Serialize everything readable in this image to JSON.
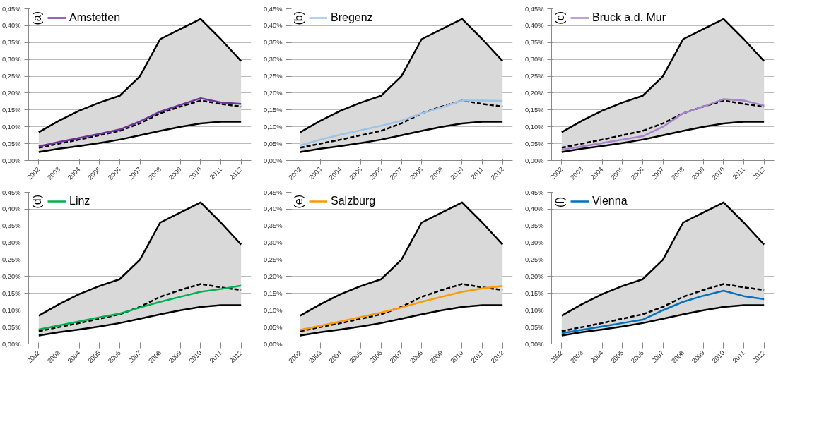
{
  "chart_data": [
    {
      "type": "line",
      "title": "(a)",
      "categories": [
        "2002",
        "2003",
        "2004",
        "2005",
        "2006",
        "2007",
        "2008",
        "2009",
        "2010",
        "2011",
        "2012"
      ],
      "ylim": [
        0,
        0.45
      ],
      "yticks": [
        {
          "value": 0,
          "label": "0,00%"
        },
        {
          "value": 0.05,
          "label": "0,05%"
        },
        {
          "value": 0.1,
          "label": "0,10%"
        },
        {
          "value": 0.15,
          "label": "0,15%"
        },
        {
          "value": 0.2,
          "label": "0,20%"
        },
        {
          "value": 0.25,
          "label": "0,25%"
        },
        {
          "value": 0.3,
          "label": "0,30%"
        },
        {
          "value": 0.35,
          "label": "0,35%"
        },
        {
          "value": 0.4,
          "label": "0,40%"
        },
        {
          "value": 0.45,
          "label": "0,45%"
        }
      ],
      "grid": "y",
      "legend": "top left",
      "series": [
        {
          "color": "#000000",
          "values": [
            0.084,
            0.118,
            0.148,
            0.172,
            0.192,
            0.25,
            0.36,
            0.39,
            0.42,
            0.36,
            0.295
          ]
        },
        {
          "color": "#000000",
          "values": [
            0.025,
            0.035,
            0.043,
            0.052,
            0.062,
            0.075,
            0.088,
            0.1,
            0.11,
            0.115,
            0.115
          ]
        },
        {
          "color": "#000000",
          "line_style": "dashed",
          "values": [
            0.038,
            0.05,
            0.062,
            0.075,
            0.088,
            0.11,
            0.14,
            0.16,
            0.178,
            0.168,
            0.16
          ],
          "lower": [
            0.025,
            0.035,
            0.043,
            0.052,
            0.062,
            0.075,
            0.088,
            0.1,
            0.11,
            0.115,
            0.115
          ],
          "upper": [
            0.084,
            0.118,
            0.148,
            0.172,
            0.192,
            0.25,
            0.36,
            0.39,
            0.42,
            0.36,
            0.295
          ]
        },
        {
          "name": "Amstetten",
          "color": "#7030a0",
          "values": [
            0.042,
            0.055,
            0.067,
            0.079,
            0.092,
            0.116,
            0.145,
            0.165,
            0.185,
            0.172,
            0.168
          ]
        }
      ]
    },
    {
      "type": "line",
      "title": "(b)",
      "categories": [
        "2002",
        "2003",
        "2004",
        "2005",
        "2006",
        "2007",
        "2008",
        "2009",
        "2010",
        "2011",
        "2012"
      ],
      "ylim": [
        0,
        0.45
      ],
      "yticks": [
        {
          "value": 0,
          "label": "0,00%"
        },
        {
          "value": 0.05,
          "label": "0,05%"
        },
        {
          "value": 0.1,
          "label": "0,10%"
        },
        {
          "value": 0.15,
          "label": "0,15%"
        },
        {
          "value": 0.2,
          "label": "0,20%"
        },
        {
          "value": 0.25,
          "label": "0,25%"
        },
        {
          "value": 0.3,
          "label": "0,30%"
        },
        {
          "value": 0.35,
          "label": "0,35%"
        },
        {
          "value": 0.4,
          "label": "0,40%"
        },
        {
          "value": 0.45,
          "label": "0,45%"
        }
      ],
      "grid": "y",
      "legend": "top left",
      "series": [
        {
          "color": "#000000",
          "values": [
            0.084,
            0.118,
            0.148,
            0.172,
            0.192,
            0.25,
            0.36,
            0.39,
            0.42,
            0.36,
            0.295
          ]
        },
        {
          "color": "#000000",
          "values": [
            0.025,
            0.035,
            0.043,
            0.052,
            0.062,
            0.075,
            0.088,
            0.1,
            0.11,
            0.115,
            0.115
          ]
        },
        {
          "color": "#000000",
          "line_style": "dashed",
          "values": [
            0.038,
            0.05,
            0.062,
            0.075,
            0.088,
            0.11,
            0.14,
            0.16,
            0.178,
            0.168,
            0.16
          ],
          "lower": [
            0.025,
            0.035,
            0.043,
            0.052,
            0.062,
            0.075,
            0.088,
            0.1,
            0.11,
            0.115,
            0.115
          ],
          "upper": [
            0.084,
            0.118,
            0.148,
            0.172,
            0.192,
            0.25,
            0.36,
            0.39,
            0.42,
            0.36,
            0.295
          ]
        },
        {
          "name": "Bregenz",
          "color": "#9dc3e6",
          "values": [
            0.045,
            0.062,
            0.077,
            0.09,
            0.103,
            0.118,
            0.14,
            0.158,
            0.178,
            0.178,
            0.177
          ]
        }
      ]
    },
    {
      "type": "line",
      "title": "(c)",
      "categories": [
        "2002",
        "2003",
        "2004",
        "2005",
        "2006",
        "2007",
        "2008",
        "2009",
        "2010",
        "2011",
        "2012"
      ],
      "ylim": [
        0,
        0.45
      ],
      "yticks": [
        {
          "value": 0,
          "label": "0,00%"
        },
        {
          "value": 0.05,
          "label": "0,05%"
        },
        {
          "value": 0.1,
          "label": "0,10%"
        },
        {
          "value": 0.15,
          "label": "0,15%"
        },
        {
          "value": 0.2,
          "label": "0,20%"
        },
        {
          "value": 0.25,
          "label": "0,25%"
        },
        {
          "value": 0.3,
          "label": "0,30%"
        },
        {
          "value": 0.35,
          "label": "0,35%"
        },
        {
          "value": 0.4,
          "label": "0,40%"
        },
        {
          "value": 0.45,
          "label": "0,45%"
        }
      ],
      "grid": "y",
      "legend": "top left",
      "series": [
        {
          "color": "#000000",
          "values": [
            0.084,
            0.118,
            0.148,
            0.172,
            0.192,
            0.25,
            0.36,
            0.39,
            0.42,
            0.36,
            0.295
          ]
        },
        {
          "color": "#000000",
          "values": [
            0.025,
            0.035,
            0.043,
            0.052,
            0.062,
            0.075,
            0.088,
            0.1,
            0.11,
            0.115,
            0.115
          ]
        },
        {
          "color": "#000000",
          "line_style": "dashed",
          "values": [
            0.038,
            0.05,
            0.062,
            0.075,
            0.088,
            0.11,
            0.14,
            0.16,
            0.178,
            0.168,
            0.16
          ],
          "lower": [
            0.025,
            0.035,
            0.043,
            0.052,
            0.062,
            0.075,
            0.088,
            0.1,
            0.11,
            0.115,
            0.115
          ],
          "upper": [
            0.084,
            0.118,
            0.148,
            0.172,
            0.192,
            0.25,
            0.36,
            0.39,
            0.42,
            0.36,
            0.295
          ]
        },
        {
          "name": "Bruck a.d. Mur",
          "color": "#a683cc",
          "values": [
            0.032,
            0.042,
            0.052,
            0.062,
            0.072,
            0.1,
            0.14,
            0.16,
            0.182,
            0.178,
            0.163
          ]
        }
      ]
    },
    {
      "type": "line",
      "title": "(d)",
      "categories": [
        "2002",
        "2003",
        "2004",
        "2005",
        "2006",
        "2007",
        "2008",
        "2009",
        "2010",
        "2011",
        "2012"
      ],
      "ylim": [
        0,
        0.45
      ],
      "yticks": [
        {
          "value": 0,
          "label": "0,00%"
        },
        {
          "value": 0.05,
          "label": "0,05%"
        },
        {
          "value": 0.1,
          "label": "0,10%"
        },
        {
          "value": 0.15,
          "label": "0,15%"
        },
        {
          "value": 0.2,
          "label": "0,20%"
        },
        {
          "value": 0.25,
          "label": "0,25%"
        },
        {
          "value": 0.3,
          "label": "0,30%"
        },
        {
          "value": 0.35,
          "label": "0,35%"
        },
        {
          "value": 0.4,
          "label": "0,40%"
        },
        {
          "value": 0.45,
          "label": "0,45%"
        }
      ],
      "grid": "y",
      "legend": "top left",
      "series": [
        {
          "color": "#000000",
          "values": [
            0.084,
            0.118,
            0.148,
            0.172,
            0.192,
            0.25,
            0.36,
            0.39,
            0.42,
            0.36,
            0.295
          ]
        },
        {
          "color": "#000000",
          "values": [
            0.025,
            0.035,
            0.043,
            0.052,
            0.062,
            0.075,
            0.088,
            0.1,
            0.11,
            0.115,
            0.115
          ]
        },
        {
          "color": "#000000",
          "line_style": "dashed",
          "values": [
            0.038,
            0.05,
            0.062,
            0.075,
            0.088,
            0.11,
            0.14,
            0.16,
            0.178,
            0.168,
            0.16
          ],
          "lower": [
            0.025,
            0.035,
            0.043,
            0.052,
            0.062,
            0.075,
            0.088,
            0.1,
            0.11,
            0.115,
            0.115
          ],
          "upper": [
            0.084,
            0.118,
            0.148,
            0.172,
            0.192,
            0.25,
            0.36,
            0.39,
            0.42,
            0.36,
            0.295
          ]
        },
        {
          "name": "Linz",
          "color": "#00b050",
          "values": [
            0.043,
            0.055,
            0.067,
            0.079,
            0.09,
            0.108,
            0.125,
            0.14,
            0.155,
            0.163,
            0.173
          ]
        }
      ]
    },
    {
      "type": "line",
      "title": "(e)",
      "categories": [
        "2002",
        "2003",
        "2004",
        "2005",
        "2006",
        "2007",
        "2008",
        "2009",
        "2010",
        "2011",
        "2012"
      ],
      "ylim": [
        0,
        0.45
      ],
      "yticks": [
        {
          "value": 0,
          "label": "0,00%"
        },
        {
          "value": 0.05,
          "label": "0,05%"
        },
        {
          "value": 0.1,
          "label": "0,10%"
        },
        {
          "value": 0.15,
          "label": "0,15%"
        },
        {
          "value": 0.2,
          "label": "0,20%"
        },
        {
          "value": 0.25,
          "label": "0,25%"
        },
        {
          "value": 0.3,
          "label": "0,30%"
        },
        {
          "value": 0.35,
          "label": "0,35%"
        },
        {
          "value": 0.4,
          "label": "0,40%"
        },
        {
          "value": 0.45,
          "label": "0,45%"
        }
      ],
      "grid": "y",
      "legend": "top left",
      "series": [
        {
          "color": "#000000",
          "values": [
            0.084,
            0.118,
            0.148,
            0.172,
            0.192,
            0.25,
            0.36,
            0.39,
            0.42,
            0.36,
            0.295
          ]
        },
        {
          "color": "#000000",
          "values": [
            0.025,
            0.035,
            0.043,
            0.052,
            0.062,
            0.075,
            0.088,
            0.1,
            0.11,
            0.115,
            0.115
          ]
        },
        {
          "color": "#000000",
          "line_style": "dashed",
          "values": [
            0.038,
            0.05,
            0.062,
            0.075,
            0.088,
            0.11,
            0.14,
            0.16,
            0.178,
            0.168,
            0.16
          ],
          "lower": [
            0.025,
            0.035,
            0.043,
            0.052,
            0.062,
            0.075,
            0.088,
            0.1,
            0.11,
            0.115,
            0.115
          ],
          "upper": [
            0.084,
            0.118,
            0.148,
            0.172,
            0.192,
            0.25,
            0.36,
            0.39,
            0.42,
            0.36,
            0.295
          ]
        },
        {
          "name": "Salzburg",
          "color": "#ff9900",
          "values": [
            0.042,
            0.054,
            0.067,
            0.08,
            0.093,
            0.108,
            0.125,
            0.14,
            0.155,
            0.165,
            0.172
          ]
        }
      ]
    },
    {
      "type": "line",
      "title": "(f)",
      "categories": [
        "2002",
        "2003",
        "2004",
        "2005",
        "2006",
        "2007",
        "2008",
        "2009",
        "2010",
        "2011",
        "2012"
      ],
      "ylim": [
        0,
        0.45
      ],
      "yticks": [
        {
          "value": 0,
          "label": "0,00%"
        },
        {
          "value": 0.05,
          "label": "0,05%"
        },
        {
          "value": 0.1,
          "label": "0,10%"
        },
        {
          "value": 0.15,
          "label": "0,15%"
        },
        {
          "value": 0.2,
          "label": "0,20%"
        },
        {
          "value": 0.25,
          "label": "0,25%"
        },
        {
          "value": 0.3,
          "label": "0,30%"
        },
        {
          "value": 0.35,
          "label": "0,35%"
        },
        {
          "value": 0.4,
          "label": "0,40%"
        },
        {
          "value": 0.45,
          "label": "0,45%"
        }
      ],
      "grid": "y",
      "legend": "top left",
      "series": [
        {
          "color": "#000000",
          "values": [
            0.084,
            0.118,
            0.148,
            0.172,
            0.192,
            0.25,
            0.36,
            0.39,
            0.42,
            0.36,
            0.295
          ]
        },
        {
          "color": "#000000",
          "values": [
            0.025,
            0.035,
            0.043,
            0.052,
            0.062,
            0.075,
            0.088,
            0.1,
            0.11,
            0.115,
            0.115
          ]
        },
        {
          "color": "#000000",
          "line_style": "dashed",
          "values": [
            0.038,
            0.05,
            0.062,
            0.075,
            0.088,
            0.11,
            0.14,
            0.16,
            0.178,
            0.168,
            0.16
          ],
          "lower": [
            0.025,
            0.035,
            0.043,
            0.052,
            0.062,
            0.075,
            0.088,
            0.1,
            0.11,
            0.115,
            0.115
          ],
          "upper": [
            0.084,
            0.118,
            0.148,
            0.172,
            0.192,
            0.25,
            0.36,
            0.39,
            0.42,
            0.36,
            0.295
          ]
        },
        {
          "name": "Vienna",
          "color": "#0070c0",
          "values": [
            0.032,
            0.042,
            0.052,
            0.062,
            0.072,
            0.1,
            0.125,
            0.143,
            0.158,
            0.142,
            0.133
          ]
        }
      ]
    }
  ]
}
